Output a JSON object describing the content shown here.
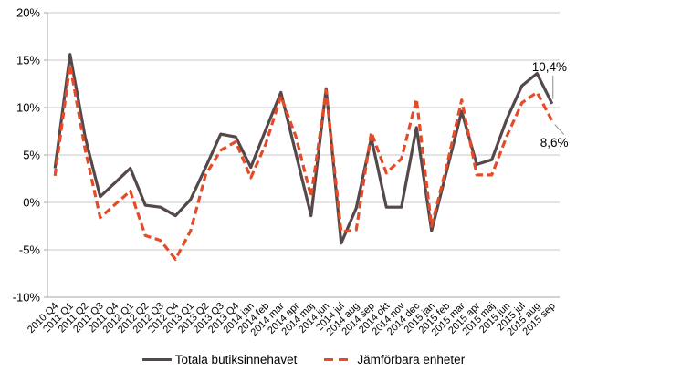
{
  "chart_data": {
    "type": "line",
    "title": "",
    "xlabel": "",
    "ylabel": "",
    "ylim": [
      -10,
      20
    ],
    "ytick_step": 5,
    "ytick_labels": [
      "20%",
      "15%",
      "10%",
      "5%",
      "0%",
      "-5%",
      "-10%"
    ],
    "grid": true,
    "legend_position": "bottom",
    "categories": [
      "2010 Q4",
      "2011 Q1",
      "2011 Q2",
      "2011 Q3",
      "2011 Q4",
      "2012 Q1",
      "2012 Q2",
      "2012 Q3",
      "2012 Q4",
      "2013 Q1",
      "2013 Q2",
      "2013 Q3",
      "2013 Q4",
      "2014 jan",
      "2014 feb",
      "2014 mar",
      "2014 apr",
      "2014 maj",
      "2014 jun",
      "2014 jul",
      "2014 aug",
      "2014 sep",
      "2014 okt",
      "2014 nov",
      "2014 dec",
      "2015 jan",
      "2015 feb",
      "2015 mar",
      "2015 apr",
      "2015 maj",
      "2015 jun",
      "2015 jul",
      "2015 aug",
      "2015 sep"
    ],
    "series": [
      {
        "name": "Totala butiksinnehavet",
        "color": "#54484a",
        "style": "solid",
        "values": [
          3.6,
          15.6,
          6.9,
          0.6,
          2.1,
          3.6,
          -0.3,
          -0.5,
          -1.4,
          0.3,
          3.7,
          7.2,
          6.9,
          3.7,
          7.7,
          11.6,
          5.1,
          -1.4,
          12.0,
          -4.3,
          -0.6,
          6.8,
          -0.5,
          -0.5,
          7.9,
          -3.0,
          3.3,
          9.6,
          4.0,
          4.5,
          8.8,
          12.3,
          13.6,
          10.4
        ]
      },
      {
        "name": "Jämförbara enheter",
        "color": "#e44b26",
        "style": "dashed",
        "values": [
          2.8,
          14.5,
          5.6,
          -1.6,
          -0.2,
          1.2,
          -3.5,
          -4.0,
          -6.0,
          -3.0,
          2.9,
          5.5,
          6.4,
          2.6,
          6.2,
          11.2,
          6.9,
          0.6,
          11.8,
          -3.1,
          -2.9,
          7.4,
          3.1,
          4.6,
          10.9,
          -2.5,
          3.8,
          10.8,
          2.9,
          2.9,
          7.0,
          10.5,
          11.6,
          8.6
        ]
      }
    ],
    "annotations": [
      {
        "text": "10,4%",
        "series_index": 0,
        "point_index": 33
      },
      {
        "text": "8,6%",
        "series_index": 1,
        "point_index": 33
      }
    ]
  }
}
